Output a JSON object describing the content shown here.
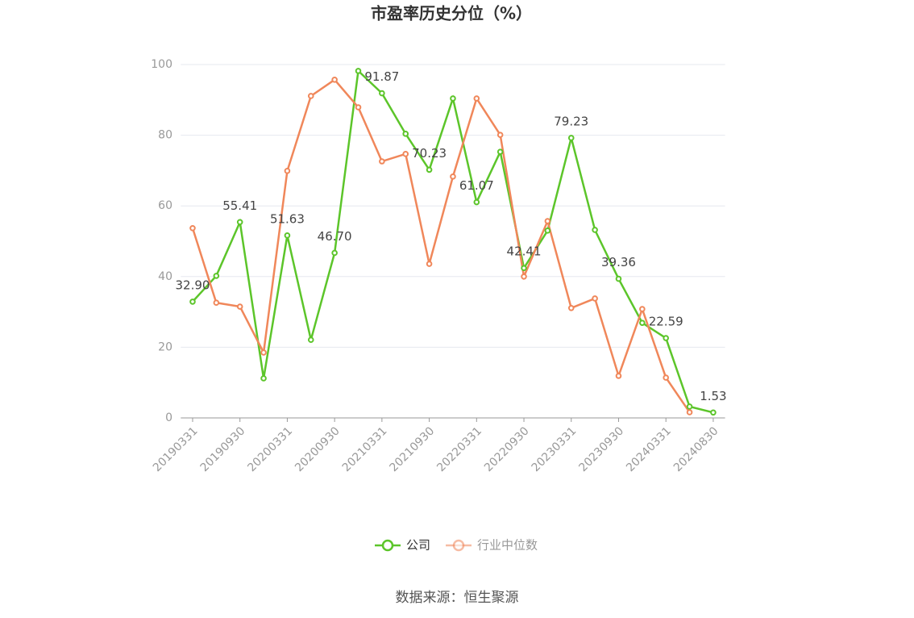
{
  "chart_data": {
    "type": "line",
    "title": "市盈率历史分位（%）",
    "source": "数据来源：恒生聚源",
    "categories": [
      "20190331",
      null,
      "20190930",
      null,
      "20200331",
      null,
      "20200930",
      null,
      "20210331",
      null,
      "20210930",
      null,
      "20220331",
      null,
      "20220930",
      null,
      "20230331",
      null,
      "20230930",
      null,
      "20240331",
      null,
      "20240830"
    ],
    "series": [
      {
        "name": "公司",
        "color": "#5cc52a",
        "values": [
          32.9,
          40.2,
          55.41,
          11.2,
          51.63,
          22.1,
          46.7,
          98.2,
          91.87,
          80.4,
          70.23,
          90.4,
          61.07,
          75.3,
          42.41,
          53.0,
          79.23,
          53.2,
          39.36,
          26.9,
          22.59,
          3.2,
          1.53
        ],
        "value_labels": [
          "32.90",
          null,
          "55.41",
          null,
          "51.63",
          null,
          "46.70",
          null,
          "91.87",
          null,
          "70.23",
          null,
          "61.07",
          null,
          "42.41",
          null,
          "79.23",
          null,
          "39.36",
          null,
          "22.59",
          null,
          "1.53"
        ]
      },
      {
        "name": "行业中位数",
        "color": "#f0875a",
        "values": [
          53.7,
          32.6,
          31.5,
          18.5,
          69.9,
          91.1,
          95.7,
          87.9,
          72.6,
          74.7,
          43.6,
          68.3,
          90.4,
          80.1,
          40.0,
          55.7,
          31.1,
          33.8,
          11.9,
          30.8,
          11.4,
          1.6,
          null
        ]
      }
    ],
    "ylim": [
      0,
      100
    ],
    "yticks": [
      0,
      20,
      40,
      60,
      80,
      100
    ],
    "grid": true
  }
}
